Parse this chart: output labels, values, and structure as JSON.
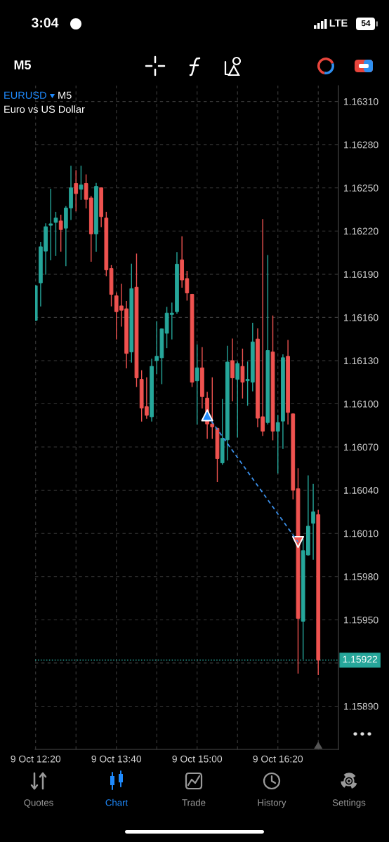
{
  "chart_data": {
    "type": "candlestick",
    "title": "EURUSD",
    "subtitle": "Euro vs US Dollar",
    "annotations": [
      "3:04",
      "LTE",
      "54",
      "M5",
      "M5",
      "Quotes",
      "Chart",
      "Trade",
      "History",
      "Settings"
    ],
    "categories": [
      "9 Oct 12:20",
      null,
      null,
      null,
      null,
      null,
      null,
      null,
      null,
      null,
      null,
      null,
      null,
      null,
      null,
      null,
      "9 Oct 13:40",
      null,
      null,
      null,
      null,
      null,
      null,
      null,
      null,
      null,
      null,
      null,
      null,
      null,
      null,
      null,
      "9 Oct 15:00",
      null,
      null,
      null,
      null,
      null,
      null,
      null,
      null,
      null,
      null,
      null,
      null,
      null,
      null,
      null,
      "9 Oct 16:20",
      null,
      null,
      null,
      null,
      null,
      null,
      null,
      null
    ],
    "series": [
      {
        "ohlc": [
          [
            1.16158,
            1.16182,
            1.16158,
            1.16182
          ],
          [
            1.16184,
            1.16212,
            1.16168,
            1.16209
          ],
          [
            1.16206,
            1.16225,
            1.1619,
            1.16223
          ],
          [
            1.16224,
            1.16249,
            1.162,
            1.16225
          ],
          [
            1.16226,
            1.16233,
            1.16203,
            1.16229
          ],
          [
            1.16227,
            1.16231,
            1.16206,
            1.16221
          ],
          [
            1.16222,
            1.16237,
            1.16196,
            1.16236
          ],
          [
            1.16236,
            1.16265,
            1.16228,
            1.1625
          ],
          [
            1.16253,
            1.16262,
            1.16234,
            1.16246
          ],
          [
            1.16249,
            1.16265,
            1.16242,
            1.16252
          ],
          [
            1.16253,
            1.16259,
            1.16236,
            1.16242
          ],
          [
            1.16243,
            1.16244,
            1.16199,
            1.16218
          ],
          [
            1.16218,
            1.16253,
            1.16206,
            1.16251
          ],
          [
            1.1625,
            1.1625,
            1.16223,
            1.1623
          ],
          [
            1.16229,
            1.16233,
            1.16189,
            1.16193
          ],
          [
            1.16194,
            1.16196,
            1.16168,
            1.16176
          ],
          [
            1.16175,
            1.16177,
            1.16145,
            1.16164
          ],
          [
            1.16168,
            1.16183,
            1.16154,
            1.16165
          ],
          [
            1.16166,
            1.16171,
            1.16125,
            1.16135
          ],
          [
            1.16136,
            1.16197,
            1.16129,
            1.1618
          ],
          [
            1.16181,
            1.16204,
            1.16112,
            1.16118
          ],
          [
            1.16117,
            1.16123,
            1.16088,
            1.16097
          ],
          [
            1.16098,
            1.16118,
            1.1609,
            1.16092
          ],
          [
            1.16091,
            1.16131,
            1.16088,
            1.16126
          ],
          [
            1.1613,
            1.16157,
            1.16121,
            1.16133
          ],
          [
            1.16132,
            1.16152,
            1.16114,
            1.16152
          ],
          [
            1.16149,
            1.16167,
            1.16139,
            1.16163
          ],
          [
            1.16162,
            1.1617,
            1.16145,
            1.16163
          ],
          [
            1.16164,
            1.16205,
            1.16163,
            1.16197
          ],
          [
            1.162,
            1.16216,
            1.16181,
            1.16186
          ],
          [
            1.16187,
            1.16192,
            1.16172,
            1.16177
          ],
          [
            1.16176,
            1.16176,
            1.16112,
            1.16115
          ],
          [
            1.16116,
            1.16141,
            1.16086,
            1.16125
          ],
          [
            1.16125,
            1.16139,
            1.16097,
            1.16105
          ],
          [
            1.16104,
            1.16108,
            1.16076,
            1.16086
          ],
          [
            1.16086,
            1.16118,
            1.16076,
            1.16084
          ],
          [
            1.16083,
            1.16083,
            1.16046,
            1.16062
          ],
          [
            1.16059,
            1.16103,
            1.16058,
            1.16076
          ],
          [
            1.16075,
            1.1614,
            1.16061,
            1.16129
          ],
          [
            1.1613,
            1.16145,
            1.16102,
            1.16118
          ],
          [
            1.16117,
            1.16129,
            1.16077,
            1.16128
          ],
          [
            1.16126,
            1.16138,
            1.16104,
            1.16115
          ],
          [
            1.16116,
            1.16129,
            1.16099,
            1.16117
          ],
          [
            1.16115,
            1.16156,
            1.16109,
            1.16143
          ],
          [
            1.16145,
            1.16152,
            1.16084,
            1.1609
          ],
          [
            1.16091,
            1.16228,
            1.16078,
            1.16081
          ],
          [
            1.16087,
            1.16203,
            1.16086,
            1.16137
          ],
          [
            1.16136,
            1.16161,
            1.16075,
            1.16081
          ],
          [
            1.16081,
            1.16092,
            1.16052,
            1.16087
          ],
          [
            1.16088,
            1.16134,
            1.16069,
            1.16132
          ],
          [
            1.16133,
            1.16144,
            1.16086,
            1.16094
          ],
          [
            1.16093,
            1.16093,
            1.16034,
            1.1604
          ],
          [
            1.16041,
            1.16055,
            1.15913,
            1.15951
          ],
          [
            1.15949,
            1.16006,
            1.15923,
            1.15998
          ],
          [
            1.15995,
            1.1605,
            1.15995,
            1.16015
          ],
          [
            1.16017,
            1.16044,
            1.15992,
            1.16025
          ],
          [
            1.16023,
            1.16026,
            1.15912,
            1.15922
          ]
        ],
        "colors": [
          "#26a69a",
          "#26a69a",
          "#26a69a",
          "#26a69a",
          "#26a69a",
          "#ef5350",
          "#26a69a",
          "#26a69a",
          "#ef5350",
          "#26a69a",
          "#ef5350",
          "#ef5350",
          "#26a69a",
          "#ef5350",
          "#ef5350",
          "#ef5350",
          "#ef5350",
          "#ef5350",
          "#ef5350",
          "#26a69a",
          "#ef5350",
          "#ef5350",
          "#ef5350",
          "#26a69a",
          "#26a69a",
          "#26a69a",
          "#26a69a",
          "#26a69a",
          "#26a69a",
          "#ef5350",
          "#ef5350",
          "#ef5350",
          "#26a69a",
          "#ef5350",
          "#ef5350",
          "#ef5350",
          "#ef5350",
          "#26a69a",
          "#26a69a",
          "#ef5350",
          "#26a69a",
          "#ef5350",
          "#26a69a",
          "#26a69a",
          "#ef5350",
          "#ef5350",
          "#26a69a",
          "#ef5350",
          "#26a69a",
          "#26a69a",
          "#ef5350",
          "#ef5350",
          "#ef5350",
          "#26a69a",
          "#26a69a",
          "#26a69a",
          "#ef5350"
        ]
      },
      {
        "type": "line",
        "color": "#3b8fe8",
        "line_style": "dashed",
        "values": [
          null,
          null,
          null,
          null,
          null,
          null,
          null,
          null,
          null,
          null,
          null,
          null,
          null,
          null,
          null,
          null,
          null,
          null,
          null,
          null,
          null,
          null,
          null,
          null,
          null,
          null,
          null,
          null,
          null,
          null,
          null,
          null,
          null,
          null,
          1.16092,
          null,
          null,
          null,
          null,
          null,
          null,
          null,
          null,
          null,
          null,
          null,
          null,
          null,
          null,
          null,
          null,
          null,
          1.16004,
          null,
          null,
          null,
          null
        ]
      },
      {
        "type": "scatter",
        "color": "#1f8bff",
        "marker": "triangle",
        "values": [
          null,
          null,
          null,
          null,
          null,
          null,
          null,
          null,
          null,
          null,
          null,
          null,
          null,
          null,
          null,
          null,
          null,
          null,
          null,
          null,
          null,
          null,
          null,
          null,
          null,
          null,
          null,
          null,
          null,
          null,
          null,
          null,
          null,
          null,
          1.16092,
          null,
          null,
          null,
          null,
          null,
          null,
          null,
          null,
          null,
          null,
          null,
          null,
          null,
          null,
          null,
          null,
          null,
          null,
          null,
          null,
          null,
          null
        ]
      },
      {
        "type": "scatter",
        "color": "#f0534f",
        "marker": "triangle-down",
        "values": [
          null,
          null,
          null,
          null,
          null,
          null,
          null,
          null,
          null,
          null,
          null,
          null,
          null,
          null,
          null,
          null,
          null,
          null,
          null,
          null,
          null,
          null,
          null,
          null,
          null,
          null,
          null,
          null,
          null,
          null,
          null,
          null,
          null,
          null,
          null,
          null,
          null,
          null,
          null,
          null,
          null,
          null,
          null,
          null,
          null,
          null,
          null,
          null,
          null,
          null,
          null,
          null,
          1.16004,
          null,
          null,
          null,
          null
        ]
      }
    ],
    "ylim": [
      1.1586,
      1.16321
    ],
    "yticks": [
      {
        "value": 1.1589,
        "label": "1.15890"
      },
      {
        "value": 1.1592,
        "label": null
      },
      {
        "value": 1.1595,
        "label": "1.15950"
      },
      {
        "value": 1.1598,
        "label": "1.15980"
      },
      {
        "value": 1.1601,
        "label": "1.16010"
      },
      {
        "value": 1.1604,
        "label": "1.16040"
      },
      {
        "value": 1.1607,
        "label": "1.16070"
      },
      {
        "value": 1.161,
        "label": "1.16100"
      },
      {
        "value": 1.1613,
        "label": "1.16130"
      },
      {
        "value": 1.1616,
        "label": "1.16160"
      },
      {
        "value": 1.1619,
        "label": "1.16190"
      },
      {
        "value": 1.1622,
        "label": "1.16220"
      },
      {
        "value": 1.1625,
        "label": "1.16250"
      },
      {
        "value": 1.1628,
        "label": "1.16280"
      },
      {
        "value": 1.1631,
        "label": "1.16310"
      }
    ],
    "ref_lines": [
      {
        "axis": "y",
        "value": 1.15922,
        "label": "1.15922",
        "color": "#26a69a",
        "line_style": "dotted"
      }
    ],
    "grid": true
  }
}
